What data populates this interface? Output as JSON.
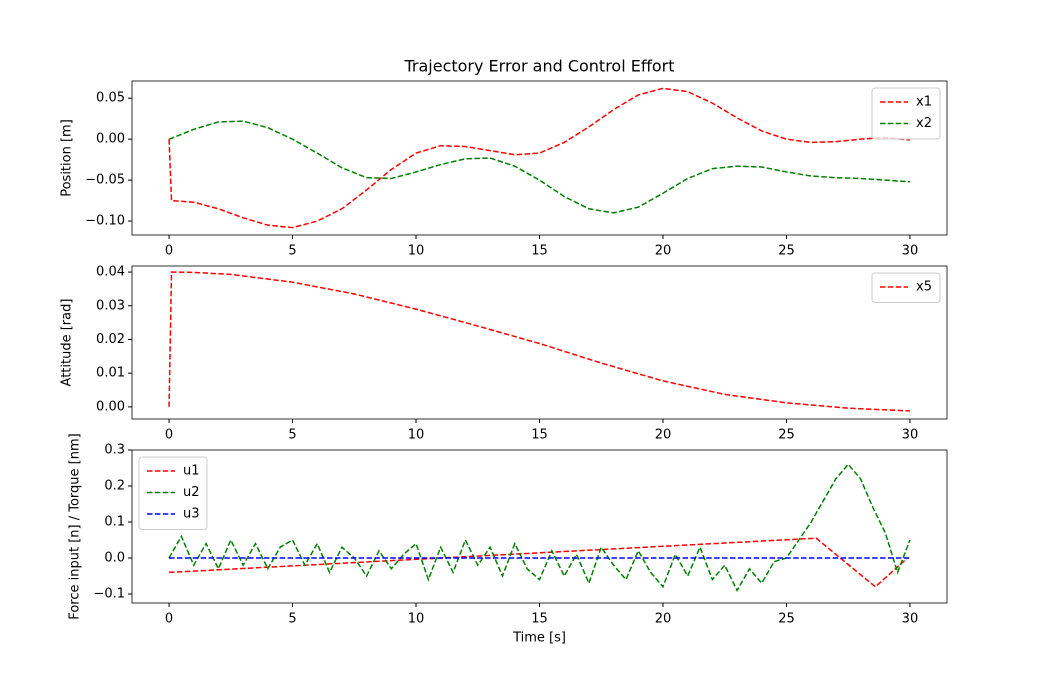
{
  "chart_data": [
    {
      "type": "line",
      "title": "Trajectory Error and Control Effort",
      "y_label": "Position [m]",
      "xlim": [
        -1.5,
        31.5
      ],
      "ylim": [
        -0.117,
        0.071
      ],
      "xticks": [
        0,
        5,
        10,
        15,
        20,
        25,
        30
      ],
      "yticks": [
        {
          "value": -0.1,
          "label": "−0.10"
        },
        {
          "value": -0.05,
          "label": "−0.05"
        },
        {
          "value": 0,
          "label": "0.00"
        },
        0.05
      ],
      "legend": "upper right",
      "x": [
        0,
        0.1,
        1,
        2,
        3,
        4,
        5,
        6,
        7,
        8,
        9,
        10,
        11,
        12,
        13,
        14,
        15,
        16,
        17,
        18,
        19,
        20,
        21,
        22,
        23,
        24,
        25,
        26,
        27,
        28,
        29,
        30
      ],
      "series": [
        {
          "name": "x1",
          "color": "#ff0000",
          "values": [
            0,
            -0.075,
            -0.077,
            -0.085,
            -0.096,
            -0.105,
            -0.108,
            -0.1,
            -0.085,
            -0.062,
            -0.037,
            -0.017,
            -0.008,
            -0.009,
            -0.014,
            -0.019,
            -0.017,
            -0.004,
            0.015,
            0.036,
            0.054,
            0.062,
            0.058,
            0.044,
            0.026,
            0.01,
            0,
            -0.004,
            -0.003,
            0,
            0.002,
            -0.001
          ]
        },
        {
          "name": "x2",
          "color": "#008000",
          "values": [
            0,
            0.001,
            0.012,
            0.021,
            0.022,
            0.014,
            0,
            -0.017,
            -0.035,
            -0.047,
            -0.048,
            -0.04,
            -0.031,
            -0.024,
            -0.023,
            -0.033,
            -0.05,
            -0.07,
            -0.085,
            -0.09,
            -0.083,
            -0.066,
            -0.048,
            -0.036,
            -0.033,
            -0.034,
            -0.04,
            -0.045,
            -0.047,
            -0.048,
            -0.05,
            -0.052
          ]
        }
      ]
    },
    {
      "type": "line",
      "y_label": "Attitude [rad]",
      "xlim": [
        -1.5,
        31.5
      ],
      "ylim": [
        -0.0036,
        0.0418
      ],
      "xticks": [
        0,
        5,
        10,
        15,
        20,
        25,
        30
      ],
      "yticks": [
        {
          "value": 0,
          "label": "0.00"
        },
        0.01,
        0.02,
        0.03,
        0.04
      ],
      "legend": "upper right",
      "x": [
        0,
        0.1,
        1,
        2.5,
        5,
        7.5,
        10,
        12.5,
        15,
        17.5,
        20,
        22.5,
        25,
        27.5,
        30
      ],
      "series": [
        {
          "name": "x5",
          "color": "#ff0000",
          "values": [
            0,
            0.04,
            0.0399,
            0.0393,
            0.037,
            0.0335,
            0.029,
            0.024,
            0.0188,
            0.013,
            0.0077,
            0.0037,
            0.0012,
            -0.0004,
            -0.0012
          ]
        }
      ]
    },
    {
      "type": "line",
      "x_label": "Time [s]",
      "y_label": "Force input [n] / Torque [nm]",
      "xlim": [
        -1.5,
        31.5
      ],
      "ylim": [
        -0.125,
        0.3
      ],
      "xticks": [
        0,
        5,
        10,
        15,
        20,
        25,
        30
      ],
      "yticks": [
        {
          "value": -0.1,
          "label": "−0.1"
        },
        {
          "value": 0,
          "label": "0.0"
        },
        0.1,
        0.2,
        0.3
      ],
      "legend": "upper left",
      "series": [
        {
          "name": "u1",
          "color": "#ff0000",
          "x": [
            0,
            26.2,
            28.6,
            29.9
          ],
          "values": [
            -0.04,
            0.055,
            -0.08,
            0
          ]
        },
        {
          "name": "u2",
          "color": "#008000",
          "x": [
            0,
            0.5,
            1,
            1.5,
            2,
            2.5,
            3,
            3.5,
            4,
            4.5,
            5,
            5.5,
            6,
            6.5,
            7,
            7.5,
            8,
            8.5,
            9,
            9.5,
            10,
            10.5,
            11,
            11.5,
            12,
            12.5,
            13,
            13.5,
            14,
            14.5,
            15,
            15.5,
            16,
            16.5,
            17,
            17.5,
            18,
            18.5,
            19,
            19.5,
            20,
            20.5,
            21,
            21.5,
            22,
            22.5,
            23,
            23.5,
            24,
            24.5,
            25,
            25.5,
            26,
            26.5,
            27,
            27.5,
            28,
            28.5,
            29,
            29.5,
            30
          ],
          "values": [
            0,
            0.06,
            -0.02,
            0.04,
            -0.03,
            0.05,
            -0.02,
            0.04,
            -0.03,
            0.03,
            0.05,
            -0.02,
            0.04,
            -0.04,
            0.03,
            0,
            -0.05,
            0.02,
            -0.03,
            0.01,
            0.04,
            -0.06,
            0.03,
            -0.04,
            0.05,
            -0.02,
            0.03,
            -0.05,
            0.04,
            -0.03,
            -0.06,
            0.02,
            -0.05,
            0.01,
            -0.07,
            0.03,
            -0.02,
            -0.06,
            0.02,
            -0.04,
            -0.08,
            0.01,
            -0.05,
            0.03,
            -0.06,
            -0.02,
            -0.09,
            -0.03,
            -0.07,
            -0.01,
            0,
            0.05,
            0.1,
            0.16,
            0.22,
            0.26,
            0.22,
            0.14,
            0.07,
            -0.04,
            0.05
          ]
        },
        {
          "name": "u3",
          "color": "#0000ff",
          "x": [
            0,
            30
          ],
          "values": [
            0,
            0
          ]
        }
      ]
    }
  ]
}
